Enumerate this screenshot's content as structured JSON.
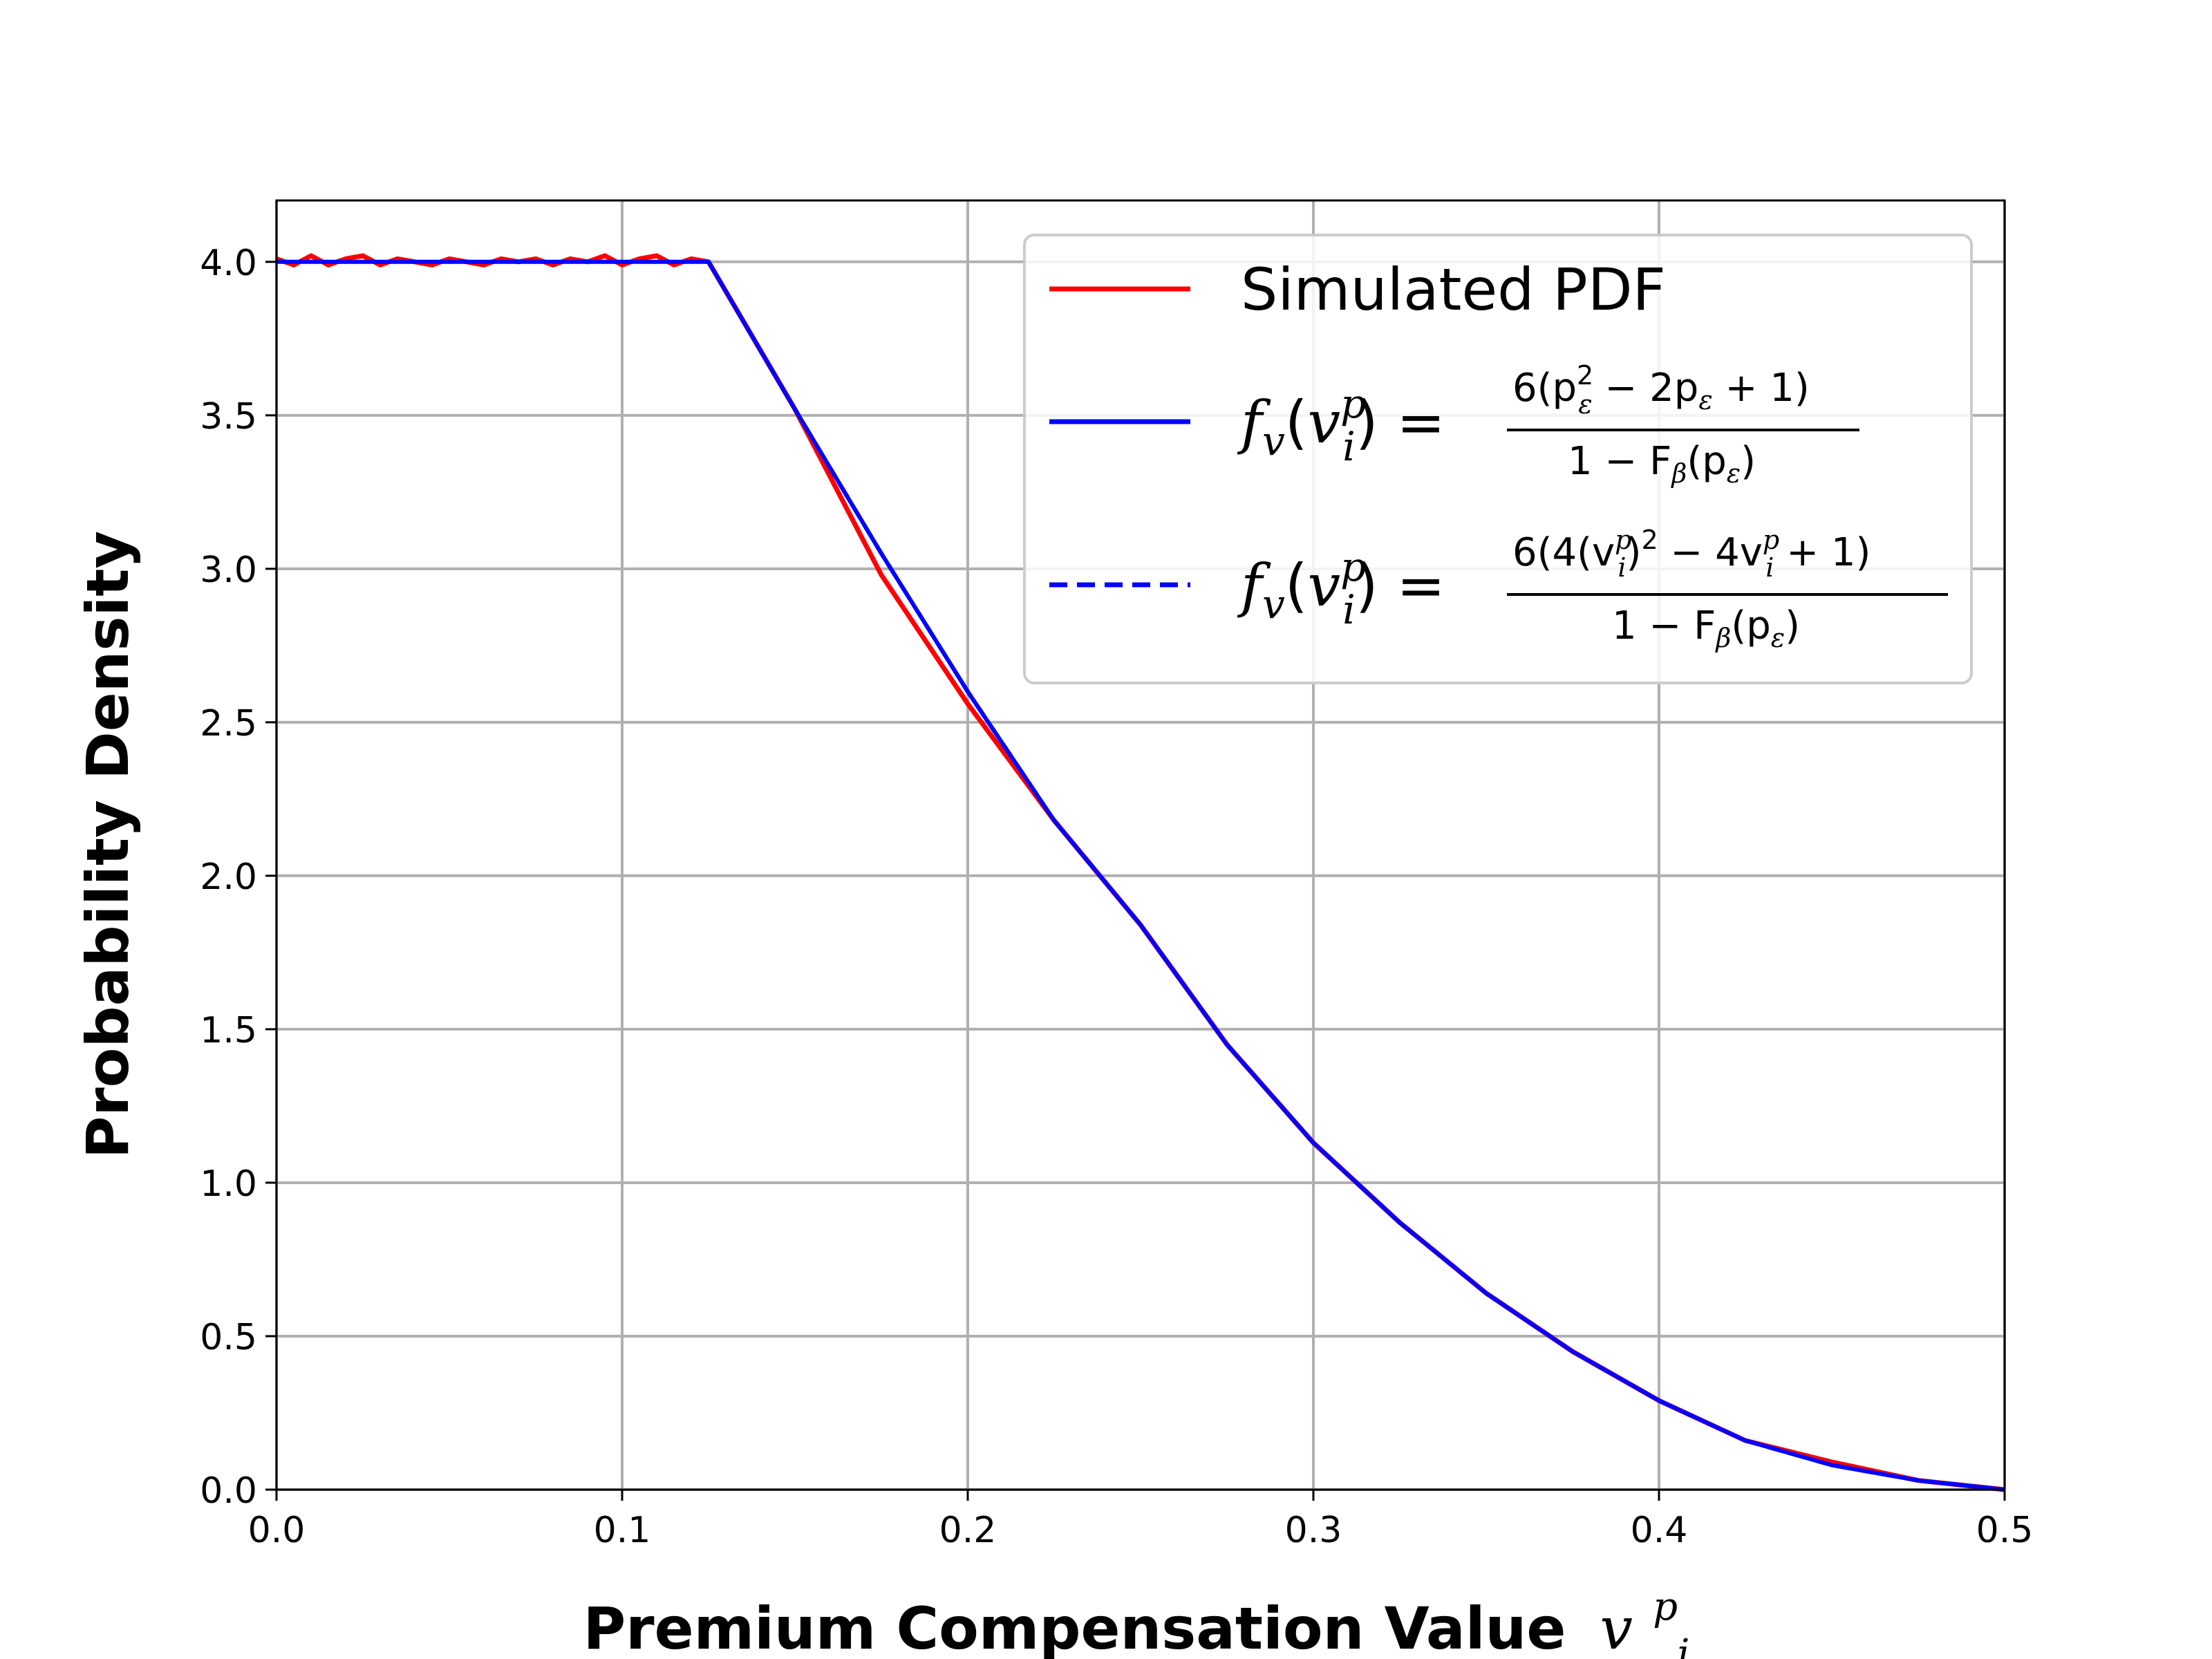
{
  "chart_data": {
    "type": "line",
    "title": "",
    "xlabel": "Premium Compensation Value v_i^p",
    "xlabel_text": "Premium Compensation Value",
    "ylabel": "Probability Density",
    "xlim": [
      0.0,
      0.5
    ],
    "ylim": [
      0.0,
      4.2
    ],
    "x_ticks": [
      0.0,
      0.1,
      0.2,
      0.3,
      0.4,
      0.5
    ],
    "x_tick_labels": [
      "0.0",
      "0.1",
      "0.2",
      "0.3",
      "0.4",
      "0.5"
    ],
    "y_ticks": [
      0.0,
      0.5,
      1.0,
      1.5,
      2.0,
      2.5,
      3.0,
      3.5,
      4.0
    ],
    "y_tick_labels": [
      "0.0",
      "0.5",
      "1.0",
      "1.5",
      "2.0",
      "2.5",
      "3.0",
      "3.5",
      "4.0"
    ],
    "grid": true,
    "legend_position": "top-right",
    "series": [
      {
        "name": "Simulated PDF",
        "color": "#ff0000",
        "style": "solid",
        "x": [
          0.0,
          0.005,
          0.01,
          0.015,
          0.02,
          0.025,
          0.03,
          0.035,
          0.04,
          0.045,
          0.05,
          0.055,
          0.06,
          0.065,
          0.07,
          0.075,
          0.08,
          0.085,
          0.09,
          0.095,
          0.1,
          0.105,
          0.11,
          0.115,
          0.12,
          0.125,
          0.15,
          0.175,
          0.2,
          0.225,
          0.25,
          0.275,
          0.3,
          0.325,
          0.35,
          0.375,
          0.4,
          0.425,
          0.45,
          0.475,
          0.5
        ],
        "values": [
          4.01,
          3.99,
          4.02,
          3.99,
          4.01,
          4.02,
          3.99,
          4.01,
          4.0,
          3.99,
          4.01,
          4.0,
          3.99,
          4.01,
          4.0,
          4.01,
          3.99,
          4.01,
          4.0,
          4.02,
          3.99,
          4.01,
          4.02,
          3.99,
          4.01,
          4.0,
          3.52,
          2.98,
          2.56,
          2.18,
          1.84,
          1.45,
          1.13,
          0.87,
          0.64,
          0.45,
          0.29,
          0.16,
          0.09,
          0.03,
          0.0
        ]
      },
      {
        "name": "f_v(v_i^p) = 6(p_ε^2 − 2p_ε + 1) / (1 − F_β(p_ε))",
        "color": "#0000ff",
        "style": "solid",
        "x": [
          0.0,
          0.125,
          0.15,
          0.175,
          0.2,
          0.225,
          0.25,
          0.275,
          0.3,
          0.325,
          0.35,
          0.375,
          0.4,
          0.425,
          0.45,
          0.475,
          0.5
        ],
        "values": [
          4.0,
          4.0,
          3.52,
          3.05,
          2.6,
          2.18,
          1.84,
          1.45,
          1.13,
          0.87,
          0.64,
          0.45,
          0.29,
          0.16,
          0.08,
          0.03,
          0.0
        ]
      },
      {
        "name": "f_v(v_i^p) = 6(4(v_i^p)^2 − 4v_i^p + 1) / (1 − F_β(p_ε))",
        "color": "#0000ff",
        "style": "dashed",
        "x": [
          0.125,
          0.15,
          0.175,
          0.2,
          0.225,
          0.25,
          0.275,
          0.3,
          0.325,
          0.35,
          0.375,
          0.4,
          0.425,
          0.45,
          0.475,
          0.5
        ],
        "values": [
          4.0,
          3.52,
          3.05,
          2.6,
          2.18,
          1.84,
          1.45,
          1.13,
          0.87,
          0.64,
          0.45,
          0.29,
          0.16,
          0.08,
          0.03,
          0.0
        ]
      }
    ],
    "legend": {
      "entry1": "Simulated PDF",
      "lhs": "f",
      "lhs_sub": "v",
      "arg": "v",
      "arg_sub": "i",
      "arg_sup": "p",
      "eq": "=",
      "num1": "6(p",
      "num1_sup": "2",
      "num1_sub": "ε",
      "num1_rest": " − 2p",
      "num1_rest_sub": "ε",
      "num1_end": " + 1)",
      "num2": "6(4(v",
      "num2_sub": "i",
      "num2_sup": "p",
      "num2_mid": ")",
      "num2_sq": "2",
      "num2_rest": " − 4v",
      "num2_rest_sub": "i",
      "num2_rest_sup": "p",
      "num2_end": " + 1)",
      "den": "1 − F",
      "den_sub": "β",
      "den_arg": "(p",
      "den_arg_sub": "ε",
      "den_end": ")"
    },
    "xlabel_math": {
      "var": "v",
      "sub": "i",
      "sup": "p"
    }
  }
}
